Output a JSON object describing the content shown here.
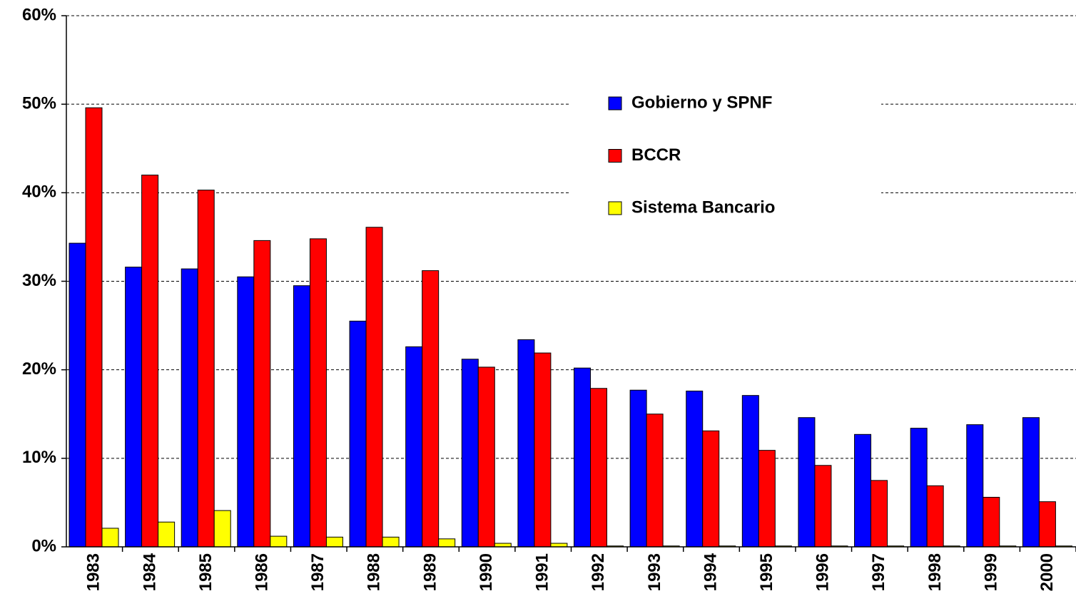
{
  "chart_data": {
    "type": "bar",
    "categories": [
      "1983",
      "1984",
      "1985",
      "1986",
      "1987",
      "1988",
      "1989",
      "1990",
      "1991",
      "1992",
      "1993",
      "1994",
      "1995",
      "1996",
      "1997",
      "1998",
      "1999",
      "2000"
    ],
    "series": [
      {
        "name": "Gobierno y SPNF",
        "color": "#0000ff",
        "values": [
          34.3,
          31.6,
          31.4,
          30.5,
          29.5,
          25.5,
          22.6,
          21.2,
          23.4,
          20.2,
          17.7,
          17.6,
          17.1,
          14.6,
          12.7,
          13.4,
          13.8,
          14.6
        ]
      },
      {
        "name": "BCCR",
        "color": "#ff0000",
        "values": [
          49.6,
          42.0,
          40.3,
          34.6,
          34.8,
          36.1,
          31.2,
          20.3,
          21.9,
          17.9,
          15.0,
          13.1,
          10.9,
          9.2,
          7.5,
          6.9,
          5.6,
          5.1
        ]
      },
      {
        "name": "Sistema Bancario",
        "color": "#ffff00",
        "values": [
          2.1,
          2.8,
          4.1,
          1.2,
          1.1,
          1.1,
          0.9,
          0.4,
          0.4,
          0.1,
          0.1,
          0.1,
          0.1,
          0.1,
          0.1,
          0.1,
          0.1,
          0.1
        ]
      }
    ],
    "ylim": [
      0,
      60
    ],
    "yticks": [
      {
        "value": 0,
        "label": "0%"
      },
      {
        "value": 10,
        "label": "10%"
      },
      {
        "value": 20,
        "label": "20%"
      },
      {
        "value": 30,
        "label": "30%"
      },
      {
        "value": 40,
        "label": "40%"
      },
      {
        "value": 50,
        "label": "50%"
      },
      {
        "value": 60,
        "label": "60%"
      }
    ],
    "grid": true,
    "legend": "upper right"
  }
}
